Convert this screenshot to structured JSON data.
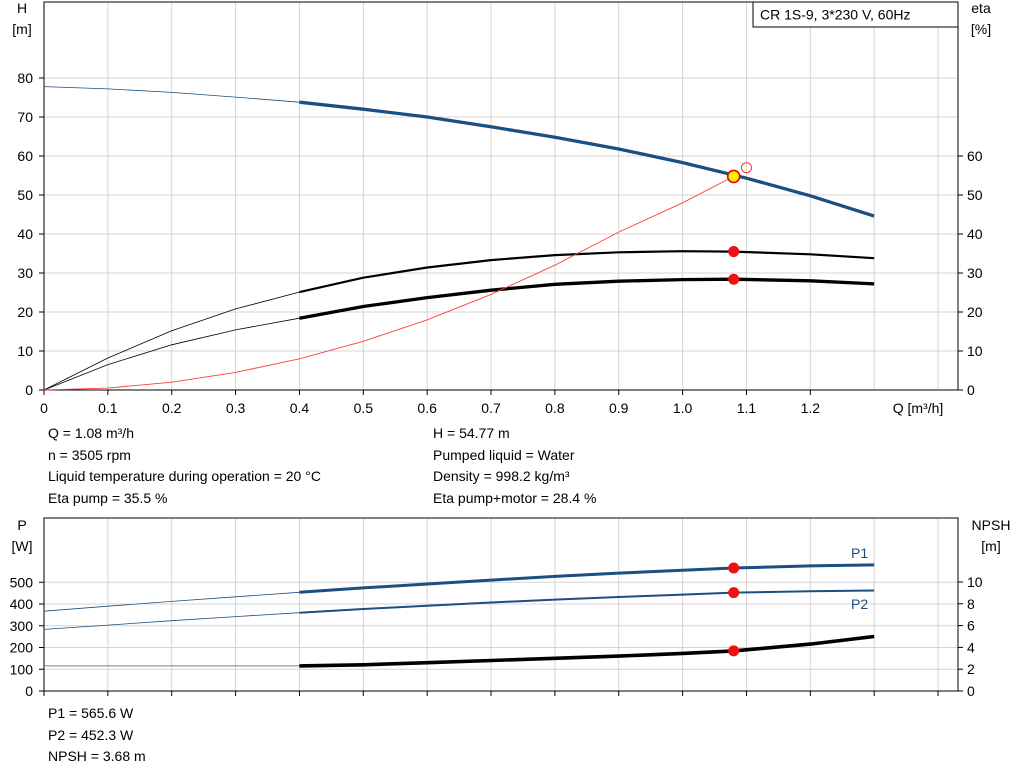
{
  "chart_data": [
    {
      "type": "line",
      "title": "CR 1S-9, 3*230 V, 60Hz",
      "xlabel": "Q [m³/h]",
      "ylabel_left": [
        "H",
        "[m]"
      ],
      "ylabel_right": [
        "eta",
        "[%]"
      ],
      "xlim": [
        0,
        1.3
      ],
      "ylim_left": [
        0,
        88
      ],
      "ylim_right": [
        0,
        88
      ],
      "x_ticks": [
        "0",
        "0.1",
        "0.2",
        "0.3",
        "0.4",
        "0.5",
        "0.6",
        "0.7",
        "0.8",
        "0.9",
        "1.0",
        "1.1",
        "1.2"
      ],
      "y_ticks_left": [
        "0",
        "10",
        "20",
        "30",
        "40",
        "50",
        "60",
        "70",
        "80"
      ],
      "y_ticks_right": [
        "0",
        "10",
        "20",
        "30",
        "40",
        "50",
        "60"
      ],
      "grid": true,
      "series": [
        {
          "name": "",
          "color": "#1a4f80",
          "axis": "left",
          "x": [
            0,
            0.1,
            0.2,
            0.3,
            0.4,
            0.5,
            0.6,
            0.7,
            0.8,
            0.9,
            1.0,
            1.1,
            1.2,
            1.3
          ],
          "values": [
            77.8,
            77.2,
            76.3,
            75.1,
            73.8,
            72.0,
            70.0,
            67.5,
            64.8,
            61.8,
            58.3,
            54.3,
            49.8,
            44.6
          ]
        },
        {
          "name": "",
          "color": "#000000",
          "axis": "right",
          "x": [
            0,
            0.1,
            0.2,
            0.3,
            0.4,
            0.5,
            0.6,
            0.7,
            0.8,
            0.9,
            1.0,
            1.08,
            1.2,
            1.3
          ],
          "values": [
            0,
            8.2,
            15.2,
            20.8,
            25.1,
            28.8,
            31.4,
            33.3,
            34.6,
            35.3,
            35.6,
            35.5,
            34.8,
            33.8
          ]
        },
        {
          "name": "",
          "color": "#000000",
          "axis": "right",
          "x": [
            0,
            0.1,
            0.2,
            0.3,
            0.4,
            0.5,
            0.6,
            0.7,
            0.8,
            0.9,
            1.0,
            1.08,
            1.2,
            1.3
          ],
          "values": [
            0,
            6.5,
            11.6,
            15.4,
            18.4,
            21.4,
            23.7,
            25.6,
            27.1,
            27.9,
            28.3,
            28.4,
            28.0,
            27.2
          ]
        },
        {
          "name": "",
          "color": "#ff4040",
          "axis": "left",
          "x": [
            0,
            0.1,
            0.2,
            0.3,
            0.4,
            0.5,
            0.6,
            0.7,
            0.8,
            0.9,
            1.0,
            1.08
          ],
          "values": [
            0,
            0.5,
            2.0,
            4.5,
            8.0,
            12.5,
            18.0,
            24.5,
            32.0,
            40.5,
            48.0,
            54.77
          ]
        }
      ],
      "operating_point": {
        "x": 1.08,
        "values": [
          54.77,
          35.5,
          28.4
        ],
        "requested_point": [
          1.1,
          57
        ]
      }
    },
    {
      "type": "line",
      "xlabel": "",
      "ylabel_left": [
        "P",
        "[W]"
      ],
      "ylabel_right": [
        "NPSH",
        "[m]"
      ],
      "xlim": [
        0,
        1.3
      ],
      "ylim_left": [
        0,
        600
      ],
      "ylim_right": [
        0,
        12
      ],
      "y_ticks_left": [
        "0",
        "100",
        "200",
        "300",
        "400",
        "500"
      ],
      "y_ticks_right": [
        "0",
        "2",
        "4",
        "6",
        "8",
        "10"
      ],
      "grid": true,
      "series": [
        {
          "name": "P1",
          "color": "#1a4f80",
          "axis": "left",
          "x": [
            0,
            0.1,
            0.2,
            0.3,
            0.4,
            0.5,
            0.6,
            0.7,
            0.8,
            0.9,
            1.0,
            1.08,
            1.2,
            1.3
          ],
          "values": [
            367,
            390,
            412,
            433,
            454,
            474,
            492,
            510,
            527,
            542,
            555,
            565.6,
            575,
            580
          ]
        },
        {
          "name": "P2",
          "color": "#1a4f80",
          "axis": "left",
          "x": [
            0,
            0.1,
            0.2,
            0.3,
            0.4,
            0.5,
            0.6,
            0.7,
            0.8,
            0.9,
            1.0,
            1.08,
            1.2,
            1.3
          ],
          "values": [
            283,
            303,
            323,
            342,
            360,
            377,
            392,
            407,
            420,
            432,
            443,
            452.3,
            459,
            462
          ]
        },
        {
          "name": "",
          "color": "#000000",
          "axis": "right",
          "x": [
            0,
            0.1,
            0.2,
            0.3,
            0.4,
            0.5,
            0.6,
            0.7,
            0.8,
            0.9,
            1.0,
            1.08,
            1.2,
            1.3
          ],
          "values": [
            2.3,
            2.3,
            2.3,
            2.3,
            2.3,
            2.4,
            2.6,
            2.8,
            3.0,
            3.2,
            3.45,
            3.68,
            4.3,
            5.0
          ]
        }
      ],
      "operating_point": {
        "x": 1.08,
        "values_left": [
          565.6,
          452.3
        ],
        "values_right": [
          3.68
        ]
      }
    }
  ],
  "info_top_left": [
    "Q = 1.08 m³/h",
    "n = 3505 rpm",
    "Liquid temperature during operation = 20 °C",
    "Eta pump = 35.5 %"
  ],
  "info_top_right": [
    "H = 54.77 m",
    "Pumped liquid = Water",
    "Density = 998.2 kg/m³",
    "Eta pump+motor = 28.4 %"
  ],
  "info_bottom": [
    "P1 = 565.6 W",
    "P2 = 452.3 W",
    "NPSH = 3.68 m"
  ]
}
